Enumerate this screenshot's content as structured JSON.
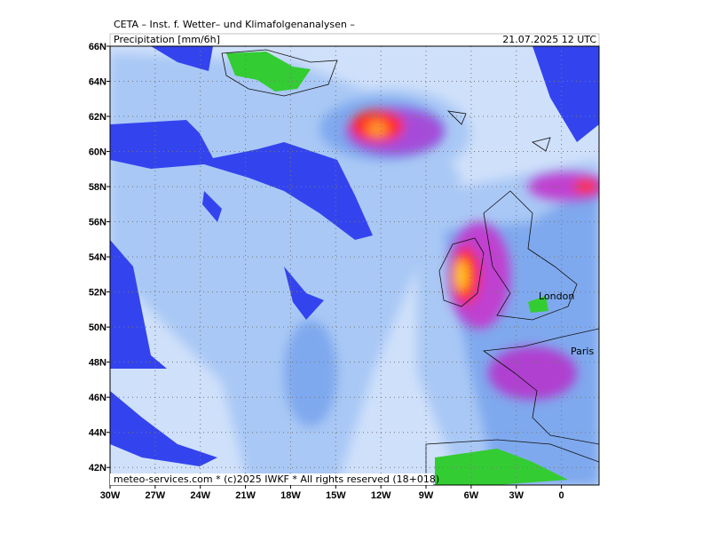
{
  "map": {
    "header": "CETA – Inst. f. Wetter– und Klimafolgenanalysen –",
    "title": "Precipitation [mm/6h]",
    "datetime": "21.07.2025 12 UTC",
    "footer": "meteo-services.com * (c)2025 IWKF * All rights reserved (18+018)",
    "xlim": [
      -30,
      2.5
    ],
    "ylim": [
      41,
      66
    ],
    "grid": true,
    "lat_ticks": [
      {
        "value": 42,
        "label": "42N"
      },
      {
        "value": 44,
        "label": "44N"
      },
      {
        "value": 46,
        "label": "46N"
      },
      {
        "value": 48,
        "label": "48N"
      },
      {
        "value": 50,
        "label": "50N"
      },
      {
        "value": 52,
        "label": "52N"
      },
      {
        "value": 54,
        "label": "54N"
      },
      {
        "value": 56,
        "label": "56N"
      },
      {
        "value": 58,
        "label": "58N"
      },
      {
        "value": 60,
        "label": "60N"
      },
      {
        "value": 62,
        "label": "62N"
      },
      {
        "value": 64,
        "label": "64N"
      },
      {
        "value": 66,
        "label": "66N"
      }
    ],
    "lon_ticks": [
      {
        "value": -30,
        "label": "30W"
      },
      {
        "value": -27,
        "label": "27W"
      },
      {
        "value": -24,
        "label": "24W"
      },
      {
        "value": -21,
        "label": "21W"
      },
      {
        "value": -18,
        "label": "18W"
      },
      {
        "value": -15,
        "label": "15W"
      },
      {
        "value": -12,
        "label": "12W"
      },
      {
        "value": -9,
        "label": "9W"
      },
      {
        "value": -6,
        "label": "6W"
      },
      {
        "value": -3,
        "label": "3W"
      },
      {
        "value": 0,
        "label": "0"
      }
    ],
    "places": [
      "London",
      "Paris"
    ]
  }
}
